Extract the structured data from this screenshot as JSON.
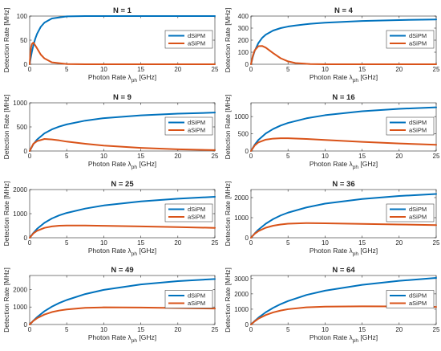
{
  "chart_data": [
    {
      "title": "N = 1",
      "type": "line",
      "xlabel": "Photon Rate λ_ph [GHz]",
      "ylabel": "Detection Rate [MHz]",
      "xlim": [
        0,
        25
      ],
      "ylim": [
        0,
        100
      ],
      "xticks": [
        0,
        5,
        10,
        15,
        20,
        25
      ],
      "yticks": [
        0,
        50,
        100
      ],
      "legend": "right",
      "N": 1,
      "x": [
        0,
        0.1,
        0.2,
        0.3,
        0.5,
        0.75,
        1,
        1.5,
        2,
        3,
        5,
        7.5,
        10,
        15,
        20,
        25
      ],
      "series": [
        {
          "name": "dSiPM",
          "color": "#0072BD",
          "values": [
            0,
            9.5,
            18.1,
            25.9,
            39.3,
            52.8,
            63.2,
            77.7,
            86.5,
            95,
            99.3,
            99.9,
            100,
            100,
            100,
            100
          ]
        },
        {
          "name": "aSiPM",
          "color": "#D95319",
          "values": [
            0,
            24,
            36,
            42,
            45,
            39,
            33,
            20,
            12,
            4,
            0.5,
            0,
            0,
            0,
            0,
            0
          ]
        }
      ]
    },
    {
      "title": "N = 4",
      "type": "line",
      "xlabel": "Photon Rate λ_ph [GHz]",
      "ylabel": "Detection Rate [MHz]",
      "xlim": [
        0,
        25
      ],
      "ylim": [
        0,
        400
      ],
      "xticks": [
        0,
        5,
        10,
        15,
        20,
        25
      ],
      "yticks": [
        0,
        100,
        200,
        300,
        400
      ],
      "legend": "right",
      "N": 4,
      "x": [
        0,
        0.25,
        0.5,
        1,
        1.5,
        2,
        3,
        4,
        5,
        6,
        8,
        10,
        15,
        20,
        25
      ],
      "series": [
        {
          "name": "dSiPM",
          "color": "#0072BD",
          "values": [
            0,
            62,
            110,
            176,
            218,
            246,
            280,
            300,
            313,
            322,
            336,
            345,
            359,
            367,
            372
          ]
        },
        {
          "name": "aSiPM",
          "color": "#D95319",
          "values": [
            0,
            70,
            115,
            150,
            152,
            138,
            92,
            50,
            24,
            10,
            2,
            0,
            0,
            0,
            0
          ]
        }
      ]
    },
    {
      "title": "N = 9",
      "type": "line",
      "xlabel": "Photon Rate λ_ph [GHz]",
      "ylabel": "Detection Rate [MHz]",
      "xlim": [
        0,
        25
      ],
      "ylim": [
        0,
        1000
      ],
      "xticks": [
        0,
        5,
        10,
        15,
        20,
        25
      ],
      "yticks": [
        0,
        500,
        1000
      ],
      "legend": "right",
      "N": 9,
      "x": [
        0,
        0.5,
        1,
        2,
        3,
        4,
        5,
        7.5,
        10,
        15,
        20,
        25
      ],
      "series": [
        {
          "name": "dSiPM",
          "color": "#0072BD",
          "values": [
            0,
            142,
            238,
            366,
            448,
            507,
            552,
            630,
            682,
            740,
            774,
            797
          ]
        },
        {
          "name": "aSiPM",
          "color": "#D95319",
          "values": [
            0,
            150,
            205,
            250,
            240,
            220,
            195,
            150,
            112,
            65,
            35,
            18
          ]
        }
      ]
    },
    {
      "title": "N = 16",
      "type": "line",
      "xlabel": "Photon Rate λ_ph [GHz]",
      "ylabel": "Detection Rate [MHz]",
      "xlim": [
        0,
        25
      ],
      "ylim": [
        0,
        1400
      ],
      "xticks": [
        0,
        5,
        10,
        15,
        20,
        25
      ],
      "yticks": [
        0,
        500,
        1000
      ],
      "legend": "right",
      "N": 16,
      "x": [
        0,
        0.5,
        1,
        2,
        3,
        4,
        5,
        7.5,
        10,
        15,
        20,
        25
      ],
      "series": [
        {
          "name": "dSiPM",
          "color": "#0072BD",
          "values": [
            0,
            180,
            320,
            510,
            640,
            740,
            815,
            950,
            1040,
            1155,
            1225,
            1270
          ]
        },
        {
          "name": "aSiPM",
          "color": "#D95319",
          "values": [
            0,
            160,
            250,
            330,
            360,
            370,
            370,
            350,
            320,
            265,
            218,
            180
          ]
        }
      ]
    },
    {
      "title": "N = 25",
      "type": "line",
      "xlabel": "Photon Rate λ_ph [GHz]",
      "ylabel": "Detection Rate [MHz]",
      "xlim": [
        0,
        25
      ],
      "ylim": [
        0,
        2000
      ],
      "xticks": [
        0,
        5,
        10,
        15,
        20,
        25
      ],
      "yticks": [
        0,
        1000,
        2000
      ],
      "legend": "right",
      "N": 25,
      "x": [
        0,
        0.5,
        1,
        2,
        3,
        4,
        5,
        7.5,
        10,
        15,
        20,
        25
      ],
      "series": [
        {
          "name": "dSiPM",
          "color": "#0072BD",
          "values": [
            0,
            200,
            370,
            620,
            800,
            930,
            1030,
            1210,
            1340,
            1510,
            1620,
            1700
          ]
        },
        {
          "name": "aSiPM",
          "color": "#D95319",
          "values": [
            0,
            180,
            290,
            410,
            470,
            500,
            510,
            510,
            495,
            470,
            440,
            410
          ]
        }
      ]
    },
    {
      "title": "N = 36",
      "type": "line",
      "xlabel": "Photon Rate λ_ph [GHz]",
      "ylabel": "Detection Rate [MHz]",
      "xlim": [
        0,
        25
      ],
      "ylim": [
        0,
        2400
      ],
      "xticks": [
        0,
        5,
        10,
        15,
        20,
        25
      ],
      "yticks": [
        0,
        1000,
        2000
      ],
      "legend": "right",
      "N": 36,
      "x": [
        0,
        0.5,
        1,
        2,
        3,
        4,
        5,
        7.5,
        10,
        15,
        20,
        25
      ],
      "series": [
        {
          "name": "dSiPM",
          "color": "#0072BD",
          "values": [
            0,
            210,
            400,
            700,
            930,
            1110,
            1250,
            1510,
            1700,
            1930,
            2080,
            2180
          ]
        },
        {
          "name": "aSiPM",
          "color": "#D95319",
          "values": [
            0,
            200,
            330,
            500,
            600,
            660,
            700,
            730,
            720,
            690,
            660,
            630
          ]
        }
      ]
    },
    {
      "title": "N = 49",
      "type": "line",
      "xlabel": "Photon Rate λ_ph [GHz]",
      "ylabel": "Detection Rate [MHz]",
      "xlim": [
        0,
        25
      ],
      "ylim": [
        0,
        2800
      ],
      "xticks": [
        0,
        5,
        10,
        15,
        20,
        25
      ],
      "yticks": [
        0,
        1000,
        2000
      ],
      "legend": "right",
      "N": 49,
      "x": [
        0,
        0.5,
        1,
        2,
        3,
        4,
        5,
        7.5,
        10,
        15,
        20,
        25
      ],
      "series": [
        {
          "name": "dSiPM",
          "color": "#0072BD",
          "values": [
            0,
            220,
            420,
            760,
            1020,
            1230,
            1400,
            1740,
            1980,
            2290,
            2480,
            2600
          ]
        },
        {
          "name": "aSiPM",
          "color": "#D95319",
          "values": [
            0,
            210,
            360,
            570,
            710,
            800,
            860,
            950,
            980,
            970,
            940,
            910
          ]
        }
      ]
    },
    {
      "title": "N = 64",
      "type": "line",
      "xlabel": "Photon Rate λ_ph [GHz]",
      "ylabel": "Detection Rate [MHz]",
      "xlim": [
        0,
        25
      ],
      "ylim": [
        0,
        3200
      ],
      "xticks": [
        0,
        5,
        10,
        15,
        20,
        25
      ],
      "yticks": [
        0,
        1000,
        2000,
        3000
      ],
      "legend": "right",
      "N": 64,
      "x": [
        0,
        0.5,
        1,
        2,
        3,
        4,
        5,
        7.5,
        10,
        15,
        20,
        25
      ],
      "series": [
        {
          "name": "dSiPM",
          "color": "#0072BD",
          "values": [
            0,
            230,
            440,
            800,
            1090,
            1330,
            1530,
            1930,
            2210,
            2590,
            2850,
            3040
          ]
        },
        {
          "name": "aSiPM",
          "color": "#D95319",
          "values": [
            0,
            210,
            380,
            620,
            790,
            910,
            1000,
            1120,
            1170,
            1190,
            1180,
            1150
          ]
        }
      ]
    }
  ]
}
